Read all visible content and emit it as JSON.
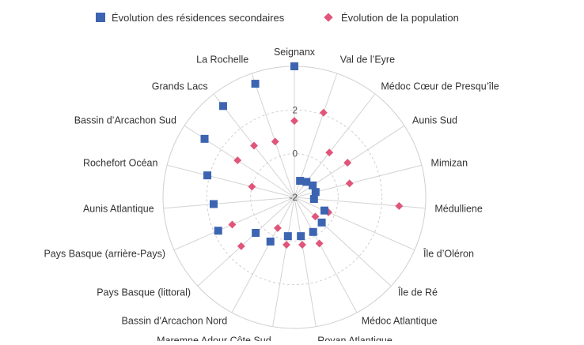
{
  "chart_data": {
    "type": "scatter",
    "subtype": "radar",
    "title": "",
    "categories": [
      "Seignanx",
      "Val de l’Eyre",
      "Médoc Cœur de Presqu’île",
      "Aunis Sud",
      "Mimizan",
      "Médulliene",
      "Île d’Oléron",
      "Île de Ré",
      "Médoc Atlantique",
      "Royan Atlantique",
      "Maremne Adour Côte Sud",
      "Bassin d'Arcachon Nord",
      "Pays Basque (littoral)",
      "Pays Basque (arrière-Pays)",
      "Aunis Atlantique",
      "Rochefort Océan",
      "Bassin d’Arcachon Sud",
      "Grands Lacs",
      "La Rochelle"
    ],
    "radial_axis": {
      "min": -2,
      "max": 4,
      "ticks": [
        -2,
        0,
        2,
        4
      ],
      "tick_labels": [
        "-2",
        "0",
        "2",
        "4"
      ]
    },
    "grid": true,
    "legend_position": "top",
    "series": [
      {
        "name": "Évolution des résidences secondaires",
        "marker": "square",
        "color": "#3c64b1",
        "values": [
          4.0,
          -1.2,
          -1.1,
          -1.0,
          -1.0,
          -1.1,
          -0.5,
          -0.3,
          -0.2,
          -0.2,
          -0.2,
          0.3,
          0.4,
          1.8,
          1.7,
          2.1,
          2.9,
          3.3,
          3.5
        ]
      },
      {
        "name": "Évolution de la population",
        "marker": "diamond",
        "color": "#e0557a",
        "values": [
          1.5,
          2.1,
          0.6,
          0.9,
          0.6,
          2.8,
          -0.3,
          -0.7,
          0.4,
          0.2,
          0.2,
          -0.4,
          1.3,
          1.1,
          1.7,
          0.0,
          1.1,
          1.0,
          0.7
        ]
      }
    ]
  }
}
